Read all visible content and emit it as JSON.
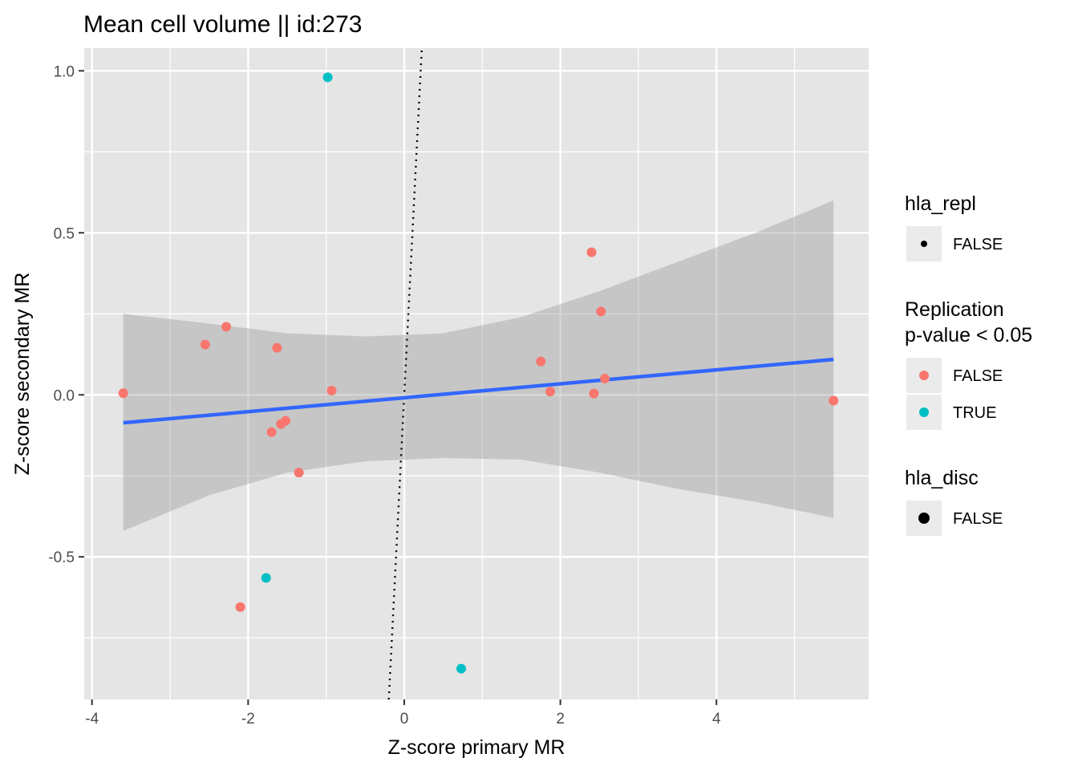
{
  "chart_data": {
    "type": "scatter",
    "title": "Mean cell volume || id:273",
    "xlabel": "Z-score primary MR",
    "ylabel": "Z-score secondary MR",
    "xlim": [
      -4.1,
      5.95
    ],
    "ylim": [
      -0.94,
      1.07
    ],
    "x_ticks": [
      -4,
      -2,
      0,
      2,
      4
    ],
    "y_ticks": [
      -0.5,
      0.0,
      0.5,
      1.0
    ],
    "x_tick_labels": [
      "-4",
      "-2",
      "0",
      "2",
      "4"
    ],
    "y_tick_labels": [
      "-0.5",
      "0.0",
      "0.5",
      "1.0"
    ],
    "grid": true,
    "colors": {
      "panel": "#e5e5e5",
      "grid": "#ffffff",
      "false_point": "#f8766d",
      "true_point": "#00bfc4",
      "fit_line": "#3366ff",
      "ribbon": "#999999",
      "reference_line": "#000000",
      "legend_key_bg": "#ebebeb"
    },
    "reference_line": {
      "style": "dotted",
      "slope": 4.75,
      "intercept": 0.0
    },
    "fit": {
      "x_range": [
        -3.6,
        5.5
      ],
      "slope": 0.0215,
      "intercept": -0.009,
      "ribbon": [
        [
          -3.6,
          -0.42,
          0.25
        ],
        [
          -2.5,
          -0.31,
          0.22
        ],
        [
          -1.5,
          -0.24,
          0.19
        ],
        [
          -0.5,
          -0.205,
          0.18
        ],
        [
          0.5,
          -0.195,
          0.19
        ],
        [
          1.5,
          -0.2,
          0.24
        ],
        [
          2.5,
          -0.24,
          0.32
        ],
        [
          3.5,
          -0.29,
          0.41
        ],
        [
          4.5,
          -0.33,
          0.5
        ],
        [
          5.5,
          -0.38,
          0.6
        ]
      ]
    },
    "series": [
      {
        "replication": "FALSE",
        "points": [
          [
            -3.6,
            0.005
          ],
          [
            -2.55,
            0.155
          ],
          [
            -2.28,
            0.21
          ],
          [
            -2.1,
            -0.655
          ],
          [
            -1.63,
            0.145
          ],
          [
            -1.7,
            -0.115
          ],
          [
            -1.58,
            -0.09
          ],
          [
            -1.52,
            -0.08
          ],
          [
            -1.35,
            -0.24
          ],
          [
            -0.93,
            0.013
          ],
          [
            1.75,
            0.103
          ],
          [
            1.87,
            0.01
          ],
          [
            2.4,
            0.44
          ],
          [
            2.43,
            0.004
          ],
          [
            2.52,
            0.257
          ],
          [
            2.57,
            0.05
          ],
          [
            5.5,
            -0.018
          ]
        ]
      },
      {
        "replication": "TRUE",
        "points": [
          [
            -0.98,
            0.98
          ],
          [
            -1.77,
            -0.565
          ],
          [
            0.73,
            -0.845
          ]
        ]
      }
    ],
    "legends": [
      {
        "title": "hla_repl",
        "entries": [
          {
            "label": "FALSE",
            "key": "small-dot"
          }
        ]
      },
      {
        "title": "Replication\np-value < 0.05",
        "entries": [
          {
            "label": "FALSE",
            "key": "false-dot"
          },
          {
            "label": "TRUE",
            "key": "true-dot"
          }
        ]
      },
      {
        "title": "hla_disc",
        "entries": [
          {
            "label": "FALSE",
            "key": "large-dot"
          }
        ]
      }
    ],
    "legend_placement": "right"
  }
}
